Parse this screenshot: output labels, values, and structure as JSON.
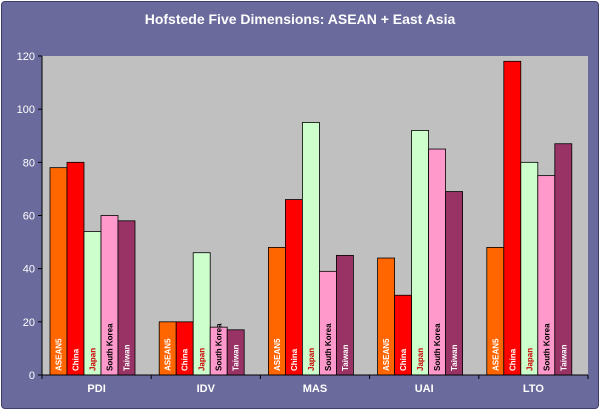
{
  "chart_data": {
    "type": "bar",
    "title": "Hofstede Five Dimensions: ASEAN + East Asia",
    "xlabel": "",
    "ylabel": "",
    "categories": [
      "PDI",
      "IDV",
      "MAS",
      "UAI",
      "LTO"
    ],
    "ylim": [
      0,
      120
    ],
    "yticks": [
      0,
      20,
      40,
      60,
      80,
      100,
      120
    ],
    "grid": false,
    "legend": "none",
    "series": [
      {
        "name": "ASEAN5",
        "color": "#ff6600",
        "label_color": "#ffffff",
        "values": [
          78,
          20,
          48,
          44,
          48
        ]
      },
      {
        "name": "China",
        "color": "#ff0000",
        "label_color": "#ffffff",
        "values": [
          80,
          20,
          66,
          30,
          118
        ]
      },
      {
        "name": "Japan",
        "color": "#ccffcc",
        "label_color": "#cc0000",
        "values": [
          54,
          46,
          95,
          92,
          80
        ]
      },
      {
        "name": "South Korea",
        "color": "#ff99cc",
        "label_color": "#000000",
        "values": [
          60,
          18,
          39,
          85,
          75
        ]
      },
      {
        "name": "Taiwan",
        "color": "#993366",
        "label_color": "#ffffff",
        "values": [
          58,
          17,
          45,
          69,
          87
        ]
      }
    ],
    "colors": {
      "background": "#6a6a9c",
      "plot_area": "#c0c0c0",
      "text": "#ffffff"
    }
  }
}
